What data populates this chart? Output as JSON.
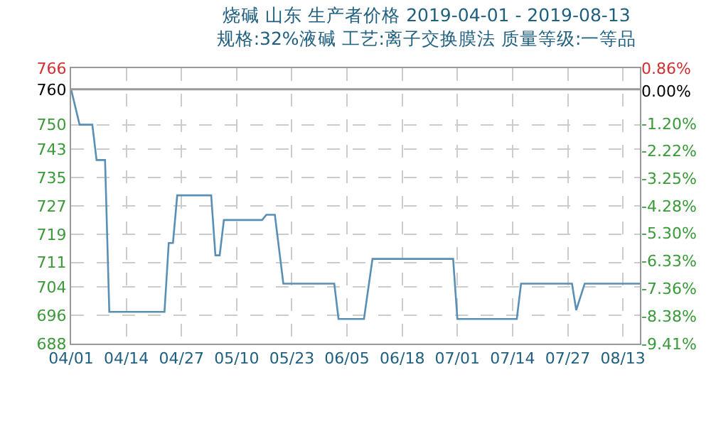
{
  "chart_data": {
    "type": "line",
    "title": "烧碱 山东 生产者价格 2019-04-01 - 2019-08-13",
    "subtitle": "规格:32%液碱 工艺:离子交换膜法 质量等级:一等品",
    "x": [
      "2019-04-01",
      "2019-04-03",
      "2019-04-06",
      "2019-04-07",
      "2019-04-09",
      "2019-04-10",
      "2019-04-23",
      "2019-04-24",
      "2019-04-25",
      "2019-04-26",
      "2019-05-04",
      "2019-05-05",
      "2019-05-06",
      "2019-05-07",
      "2019-05-16",
      "2019-05-17",
      "2019-05-19",
      "2019-05-21",
      "2019-06-02",
      "2019-06-03",
      "2019-06-09",
      "2019-06-11",
      "2019-06-30",
      "2019-07-01",
      "2019-07-15",
      "2019-07-16",
      "2019-07-28",
      "2019-07-29",
      "2019-07-31",
      "2019-08-13"
    ],
    "series": [
      {
        "color": "#5a8fb5",
        "values": [
          760,
          750,
          750,
          740,
          740,
          697,
          697,
          716.5,
          716.5,
          730,
          730,
          713,
          713,
          723,
          723,
          724.5,
          724.5,
          705,
          705,
          695,
          695,
          712,
          712,
          695,
          695,
          705,
          705,
          697.5,
          705,
          705
        ]
      }
    ],
    "xlim": [
      "2019-04-01",
      "2019-08-13"
    ],
    "xticks": [
      {
        "value": "2019-04-01",
        "label": "04/01"
      },
      {
        "value": "2019-04-14",
        "label": "04/14"
      },
      {
        "value": "2019-04-27",
        "label": "04/27"
      },
      {
        "value": "2019-05-10",
        "label": "05/10"
      },
      {
        "value": "2019-05-23",
        "label": "05/23"
      },
      {
        "value": "2019-06-05",
        "label": "06/05"
      },
      {
        "value": "2019-06-18",
        "label": "06/18"
      },
      {
        "value": "2019-07-01",
        "label": "07/01"
      },
      {
        "value": "2019-07-14",
        "label": "07/14"
      },
      {
        "value": "2019-07-27",
        "label": "07/27"
      },
      {
        "value": "2019-08-09",
        "label": "08/13"
      }
    ],
    "ylim": [
      688,
      766
    ],
    "yticks": [
      688,
      696,
      704,
      711,
      719,
      727,
      735,
      743,
      750,
      760,
      766
    ],
    "y2lim": [
      -9.41,
      0.86
    ],
    "y2ticks": [
      {
        "value": -9.41,
        "label": "-9.41%"
      },
      {
        "value": -8.38,
        "label": "-8.38%"
      },
      {
        "value": -7.36,
        "label": "-7.36%"
      },
      {
        "value": -6.33,
        "label": "-6.33%"
      },
      {
        "value": -5.3,
        "label": "-5.30%"
      },
      {
        "value": -4.28,
        "label": "-4.28%"
      },
      {
        "value": -3.25,
        "label": "-3.25%"
      },
      {
        "value": -2.22,
        "label": "-2.22%"
      },
      {
        "value": -1.2,
        "label": "-1.20%"
      },
      {
        "value": 0,
        "label": "0.00%"
      },
      {
        "value": 0.86,
        "label": "0.86%"
      }
    ],
    "ref_lines": [
      {
        "axis": "y",
        "value": 760,
        "color": "#999999"
      }
    ],
    "grid": true,
    "marker": "none",
    "line_style": "solid"
  }
}
